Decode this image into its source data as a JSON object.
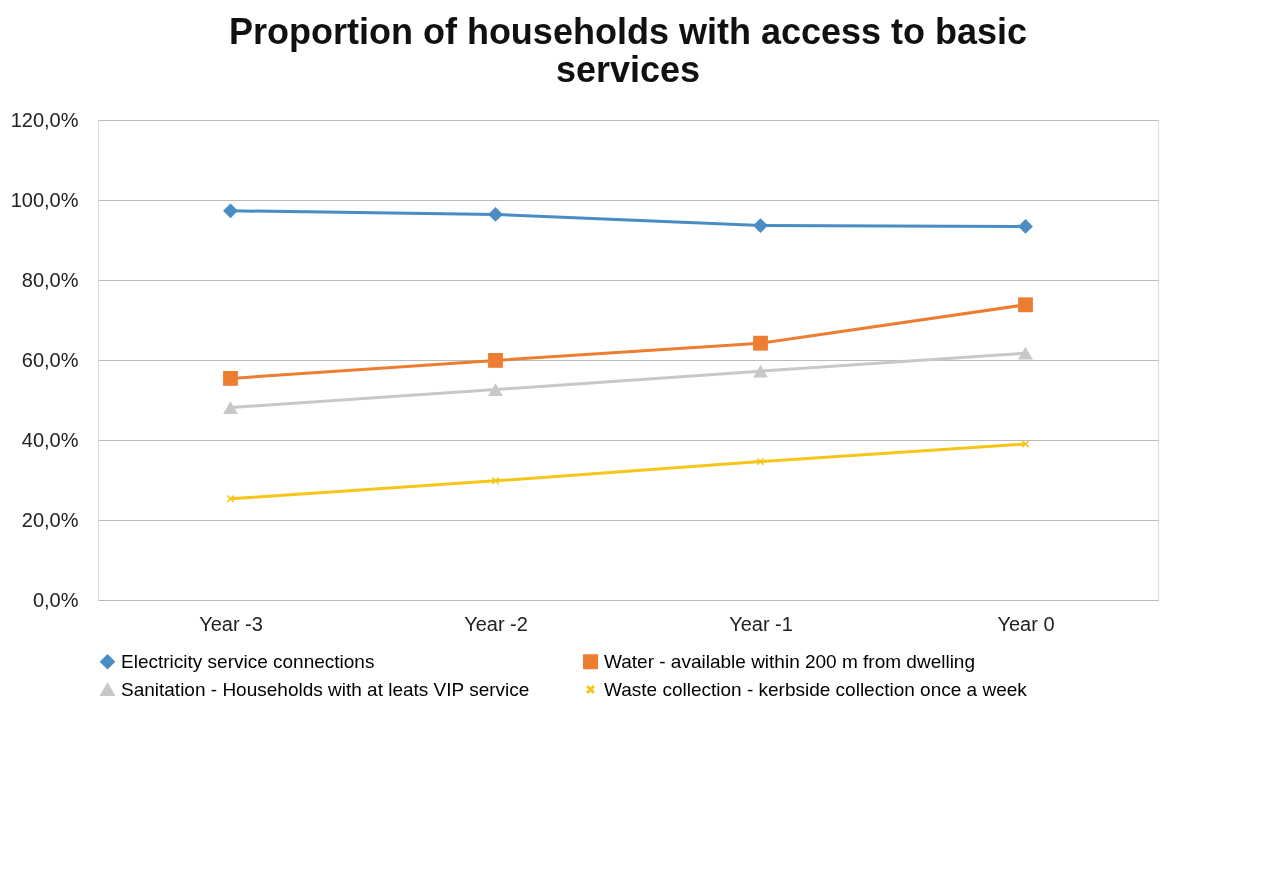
{
  "chart_data": {
    "type": "line",
    "title": "Proportion of households with access to basic services",
    "categories": [
      "Year -3",
      "Year -2",
      "Year -1",
      "Year 0"
    ],
    "series": [
      {
        "name": "Electricity  service connections",
        "color": "#4a8cc4",
        "marker": "diamond",
        "values": [
          97.3,
          96.4,
          93.6,
          93.4
        ]
      },
      {
        "name": "Water - available within 200 m from dwelling",
        "color": "#ed7d31",
        "marker": "square",
        "values": [
          55.4,
          59.9,
          64.2,
          73.8
        ]
      },
      {
        "name": "Sanitation - Households with at leats VIP service",
        "color": "#c8c8c8",
        "marker": "triangle",
        "values": [
          48.1,
          52.6,
          57.2,
          61.7
        ]
      },
      {
        "name": "Waste collection - kerbside collection once a week",
        "color": "#f5c518",
        "marker": "cross",
        "values": [
          25.3,
          29.8,
          34.6,
          39.0
        ]
      }
    ],
    "ylim": [
      0,
      120
    ],
    "yticks": [
      {
        "value": 0,
        "label": "0,0%"
      },
      {
        "value": 20,
        "label": "20,0%"
      },
      {
        "value": 40,
        "label": "40,0%"
      },
      {
        "value": 60,
        "label": "60,0%"
      },
      {
        "value": 80,
        "label": "80,0%"
      },
      {
        "value": 100,
        "label": "100,0%"
      },
      {
        "value": 120,
        "label": "120,0%"
      }
    ],
    "grid": "y",
    "legend": "bottom",
    "line_style": "solid"
  }
}
